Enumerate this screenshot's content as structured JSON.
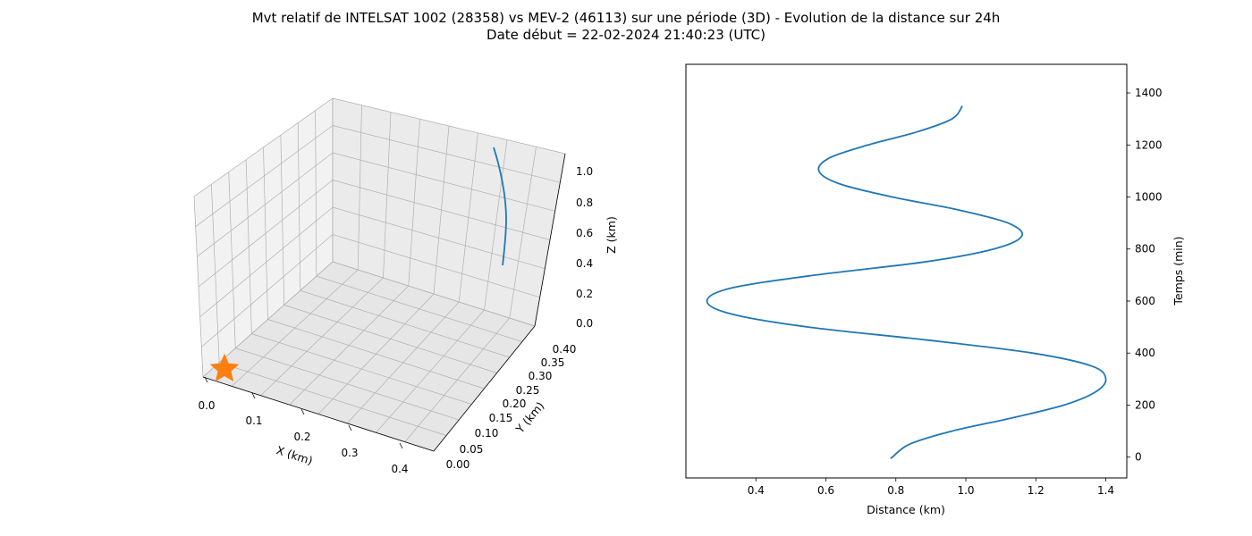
{
  "figure": {
    "title_line1": "Mvt relatif de INTELSAT 1002 (28358) vs MEV-2 (46113) sur une période (3D) - Evolution de la distance sur 24h",
    "title_line2": "Date début = 22-02-2024 21:40:23 (UTC)"
  },
  "colors": {
    "series": "#1f77b4",
    "marker": "#ff7f0e",
    "pane": "#f2f2f2",
    "grid": "#b0b0b0"
  },
  "chart_data": [
    {
      "type": "line3d",
      "xlabel": "X (km)",
      "ylabel": "Y (km)",
      "zlabel": "Z (km)",
      "x_ticks": [
        "0.0",
        "0.1",
        "0.2",
        "0.3",
        "0.4"
      ],
      "y_ticks": [
        "0.00",
        "0.05",
        "0.10",
        "0.15",
        "0.20",
        "0.25",
        "0.30",
        "0.35",
        "0.40"
      ],
      "z_ticks": [
        "0.0",
        "0.2",
        "0.4",
        "0.6",
        "0.8",
        "1.0"
      ],
      "xlim": [
        -0.02,
        0.44
      ],
      "ylim": [
        -0.02,
        0.42
      ],
      "zlim": [
        -0.05,
        1.1
      ],
      "grid": true,
      "marker": {
        "symbol": "star",
        "x": 0.0,
        "y": 0.0,
        "z": 0.0
      },
      "series": [
        {
          "x": [
            0.37,
            0.372,
            0.373,
            0.374,
            0.374,
            0.374,
            0.373,
            0.372
          ],
          "y": [
            0.41,
            0.405,
            0.4,
            0.395,
            0.39,
            0.385,
            0.38,
            0.375
          ],
          "z": [
            1.05,
            0.93,
            0.82,
            0.71,
            0.62,
            0.54,
            0.47,
            0.42
          ]
        }
      ]
    },
    {
      "type": "line",
      "xlabel": "Distance (km)",
      "ylabel": "Temps (min)",
      "xlim": [
        0.2,
        1.46
      ],
      "ylim": [
        -80,
        1510
      ],
      "x_ticks": [
        0.4,
        0.6,
        0.8,
        1.0,
        1.2,
        1.4
      ],
      "y_ticks": [
        0,
        200,
        400,
        600,
        800,
        1000,
        1200,
        1400
      ],
      "grid": false,
      "series": [
        {
          "x": [
            0.79,
            0.79,
            0.84,
            0.96,
            1.13,
            1.28,
            1.37,
            1.4,
            1.36,
            1.19,
            0.89,
            0.55,
            0.33,
            0.26,
            0.33,
            0.57,
            0.88,
            1.08,
            1.16,
            1.12,
            0.98,
            0.79,
            0.64,
            0.58,
            0.61,
            0.72,
            0.86,
            0.96,
            0.99
          ],
          "y": [
            0,
            0,
            50,
            100,
            150,
            200,
            250,
            300,
            350,
            400,
            450,
            500,
            550,
            600,
            650,
            700,
            750,
            800,
            850,
            900,
            950,
            1000,
            1050,
            1100,
            1150,
            1200,
            1250,
            1300,
            1350
          ]
        }
      ]
    }
  ]
}
